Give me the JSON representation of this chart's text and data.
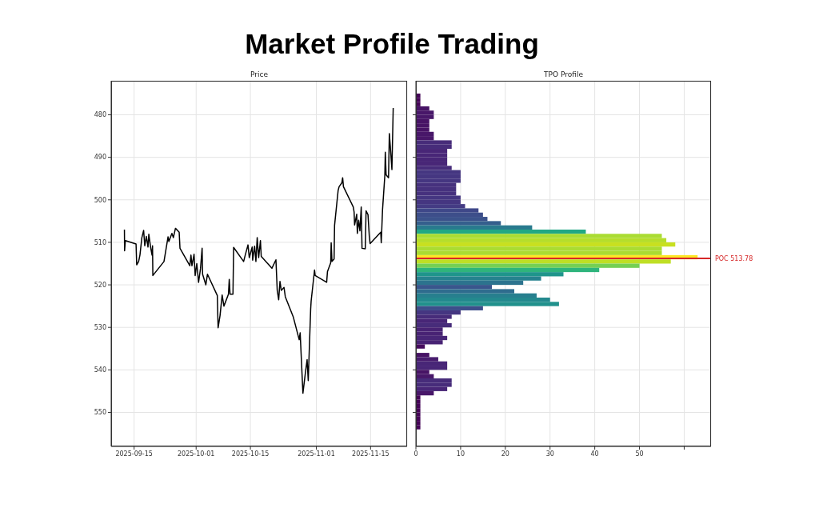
{
  "chart_data": [
    {
      "type": "other",
      "title": "Market Profile Trading"
    },
    {
      "type": "line",
      "title": "Price",
      "color": "#000000",
      "x": [
        "2025-09-12T12:00",
        "2025-09-12T13:00",
        "2025-09-12T18:00",
        "2025-09-15T12:00",
        "2025-09-15T16:00",
        "2025-09-16T04:00",
        "2025-09-16T12:00",
        "2025-09-17T00:00",
        "2025-09-17T11:00",
        "2025-09-17T18:00",
        "2025-09-18T04:00",
        "2025-09-18T14:00",
        "2025-09-18T19:00",
        "2025-09-19T06:00",
        "2025-09-19T15:00",
        "2025-09-19T18:00",
        "2025-09-19T20:00",
        "2025-09-22T17:00",
        "2025-09-23T18:00",
        "2025-09-23T23:00",
        "2025-09-24T18:00",
        "2025-09-25T03:00",
        "2025-09-25T16:00",
        "2025-09-26T15:00",
        "2025-09-26T20:00",
        "2025-09-29T09:00",
        "2025-09-29T16:00",
        "2025-09-29T22:00",
        "2025-09-30T11:00",
        "2025-09-30T18:00",
        "2025-10-01T04:00",
        "2025-10-01T15:00",
        "2025-10-02T03:00",
        "2025-10-02T13:00",
        "2025-10-02T16:00",
        "2025-10-03T12:00",
        "2025-10-03T22:00",
        "2025-10-06T11:00",
        "2025-10-06T16:00",
        "2025-10-07T04:00",
        "2025-10-07T17:00",
        "2025-10-08T04:00",
        "2025-10-09T08:00",
        "2025-10-09T13:00",
        "2025-10-09T18:00",
        "2025-10-10T12:00",
        "2025-10-10T16:00",
        "2025-10-13T06:00",
        "2025-10-13T16:00",
        "2025-10-14T09:00",
        "2025-10-14T17:00",
        "2025-10-15T11:00",
        "2025-10-15T14:00",
        "2025-10-16T02:00",
        "2025-10-16T10:00",
        "2025-10-16T18:00",
        "2025-10-17T03:00",
        "2025-10-17T14:00",
        "2025-10-17T19:00",
        "2025-10-20T13:00",
        "2025-10-21T14:00",
        "2025-10-21T22:00",
        "2025-10-22T07:00",
        "2025-10-22T15:00",
        "2025-10-22T23:00",
        "2025-10-23T16:00",
        "2025-10-24T00:00",
        "2025-10-26T01:00",
        "2025-10-27T14:00",
        "2025-10-27T20:00",
        "2025-10-28T13:00",
        "2025-10-29T04:00",
        "2025-10-29T15:00",
        "2025-10-29T22:00",
        "2025-10-30T13:00",
        "2025-10-30T16:00",
        "2025-10-31T13:00",
        "2025-10-31T17:00",
        "2025-11-03T16:00",
        "2025-11-03T21:00",
        "2025-11-04T17:00",
        "2025-11-04T20:00",
        "2025-11-05T01:00",
        "2025-11-05T14:00",
        "2025-11-05T17:00",
        "2025-11-06T15:00",
        "2025-11-06T21:00",
        "2025-11-07T14:00",
        "2025-11-07T19:00",
        "2025-11-08T00:00",
        "2025-11-10T13:00",
        "2025-11-10T18:00",
        "2025-11-10T21:00",
        "2025-11-11T10:00",
        "2025-11-11T14:00",
        "2025-11-11T22:00",
        "2025-11-12T06:00",
        "2025-11-12T14:00",
        "2025-11-12T19:00",
        "2025-11-13T15:00",
        "2025-11-13T20:00",
        "2025-11-14T08:00",
        "2025-11-14T16:00",
        "2025-11-14T21:00",
        "2025-11-17T15:00",
        "2025-11-17T18:00",
        "2025-11-18T02:00",
        "2025-11-18T16:00",
        "2025-11-18T19:00",
        "2025-11-19T00:00",
        "2025-11-19T15:00",
        "2025-11-19T20:00",
        "2025-11-20T04:00",
        "2025-11-20T12:00",
        "2025-11-20T20:00"
      ],
      "values": [
        507.0,
        512.0,
        509.6,
        510.4,
        515.3,
        514.5,
        513.0,
        508.9,
        507.2,
        510.8,
        508.6,
        511.1,
        508.1,
        511.1,
        513.0,
        510.8,
        517.8,
        514.5,
        508.7,
        509.8,
        507.9,
        508.9,
        506.7,
        507.6,
        511.4,
        515.5,
        513.0,
        515.5,
        512.8,
        517.8,
        515.0,
        519.4,
        516.2,
        511.4,
        517.5,
        520.0,
        517.5,
        522.5,
        530.1,
        527.2,
        522.4,
        525.0,
        522.2,
        518.7,
        522.2,
        522.2,
        511.2,
        514.5,
        513.0,
        510.6,
        513.6,
        511.1,
        514.2,
        510.9,
        514.5,
        508.9,
        513.6,
        509.6,
        513.3,
        516.1,
        514.1,
        521.3,
        523.5,
        519.2,
        521.3,
        520.6,
        522.8,
        527.5,
        532.9,
        531.3,
        545.5,
        540.8,
        537.6,
        542.5,
        525.7,
        523.8,
        516.5,
        517.8,
        519.4,
        516.9,
        514.8,
        510.1,
        514.5,
        513.9,
        506.0,
        497.8,
        496.9,
        496.0,
        494.8,
        496.9,
        501.7,
        502.9,
        505.9,
        503.4,
        507.9,
        504.8,
        507.3,
        501.7,
        511.4,
        511.5,
        502.6,
        503.5,
        508.6,
        510.3,
        507.6,
        510.1,
        502.3,
        494.4,
        488.8,
        494.1,
        494.8,
        484.4,
        488.5,
        492.9,
        478.4
      ],
      "xlim": [
        "2025-09-09T02:00",
        "2025-11-24T10:00"
      ],
      "xticks": [
        "2025-09-15",
        "2025-10-01",
        "2025-10-15",
        "2025-11-01",
        "2025-11-15"
      ],
      "ylim": [
        558,
        472
      ],
      "yticks": [
        480,
        490,
        500,
        510,
        520,
        530,
        540,
        550
      ],
      "grid": true
    },
    {
      "type": "histogram",
      "title": "TPO Profile",
      "orientation": "horizontal",
      "bins": [
        475,
        476,
        477,
        478,
        479,
        480,
        481,
        482,
        483,
        484,
        485,
        486,
        487,
        488,
        489,
        490,
        491,
        492,
        493,
        494,
        495,
        496,
        497,
        498,
        499,
        500,
        501,
        502,
        503,
        504,
        505,
        506,
        507,
        508,
        509,
        510,
        511,
        512,
        513,
        514,
        515,
        516,
        517,
        518,
        519,
        520,
        521,
        522,
        523,
        524,
        525,
        526,
        527,
        528,
        529,
        530,
        531,
        532,
        533,
        534,
        535,
        536,
        537,
        538,
        539,
        540,
        541,
        542,
        543,
        544,
        545,
        546,
        547,
        548,
        549,
        550,
        551,
        552,
        553,
        554
      ],
      "values": [
        1,
        1,
        1,
        3,
        4,
        4,
        3,
        3,
        3,
        4,
        4,
        8,
        8,
        7,
        7,
        7,
        7,
        8,
        10,
        10,
        10,
        9,
        9,
        9,
        10,
        10,
        11,
        14,
        15,
        16,
        19,
        26,
        38,
        55,
        56,
        58,
        55,
        55,
        63,
        57,
        50,
        41,
        33,
        28,
        24,
        17,
        22,
        27,
        30,
        32,
        15,
        10,
        8,
        7,
        8,
        6,
        6,
        7,
        6,
        2,
        0,
        3,
        5,
        7,
        7,
        3,
        4,
        8,
        8,
        7,
        4,
        1,
        1,
        1,
        1,
        1,
        1,
        1,
        1
      ],
      "colors": [
        "#450457",
        "#450457",
        "#450457",
        "#471365",
        "#481769",
        "#481769",
        "#471365",
        "#471365",
        "#471365",
        "#481769",
        "#481769",
        "#472c7a",
        "#472c7a",
        "#482677",
        "#482677",
        "#482677",
        "#482677",
        "#472c7a",
        "#453681",
        "#453681",
        "#453681",
        "#46317e",
        "#46317e",
        "#46317e",
        "#453681",
        "#453681",
        "#443b84",
        "#3f4889",
        "#3d4e8a",
        "#3b528b",
        "#355f8d",
        "#297a8e",
        "#22a884",
        "#aadc32",
        "#b5de2b",
        "#c8e020",
        "#aadc32",
        "#aadc32",
        "#fde725",
        "#bfdf25",
        "#75d054",
        "#2fb47c",
        "#1f958b",
        "#26828e",
        "#2c738e",
        "#39568c",
        "#2f6c8e",
        "#277f8e",
        "#23898e",
        "#21918c",
        "#3d4e8a",
        "#453681",
        "#472c7a",
        "#482677",
        "#472c7a",
        "#482374",
        "#482374",
        "#482677",
        "#482374",
        "#460b5e",
        "#440154",
        "#471365",
        "#481c6e",
        "#482677",
        "#482677",
        "#471365",
        "#481769",
        "#472c7a",
        "#472c7a",
        "#482677",
        "#481769",
        "#450457",
        "#450457",
        "#450457",
        "#450457",
        "#450457",
        "#450457",
        "#450457",
        "#450457"
      ],
      "xlim": [
        0,
        66
      ],
      "xticks": [
        0,
        10,
        20,
        30,
        40,
        50,
        {
          "value": 60,
          "label": null
        }
      ],
      "ylim": [
        558,
        472
      ],
      "yticks": [
        480,
        490,
        500,
        510,
        520,
        530,
        540,
        550
      ],
      "tick_labels": "x",
      "grid": true,
      "ref_lines": [
        {
          "axis": "y",
          "value": 513.78,
          "label": "POC 513.78",
          "color": "#d62728"
        }
      ]
    }
  ]
}
